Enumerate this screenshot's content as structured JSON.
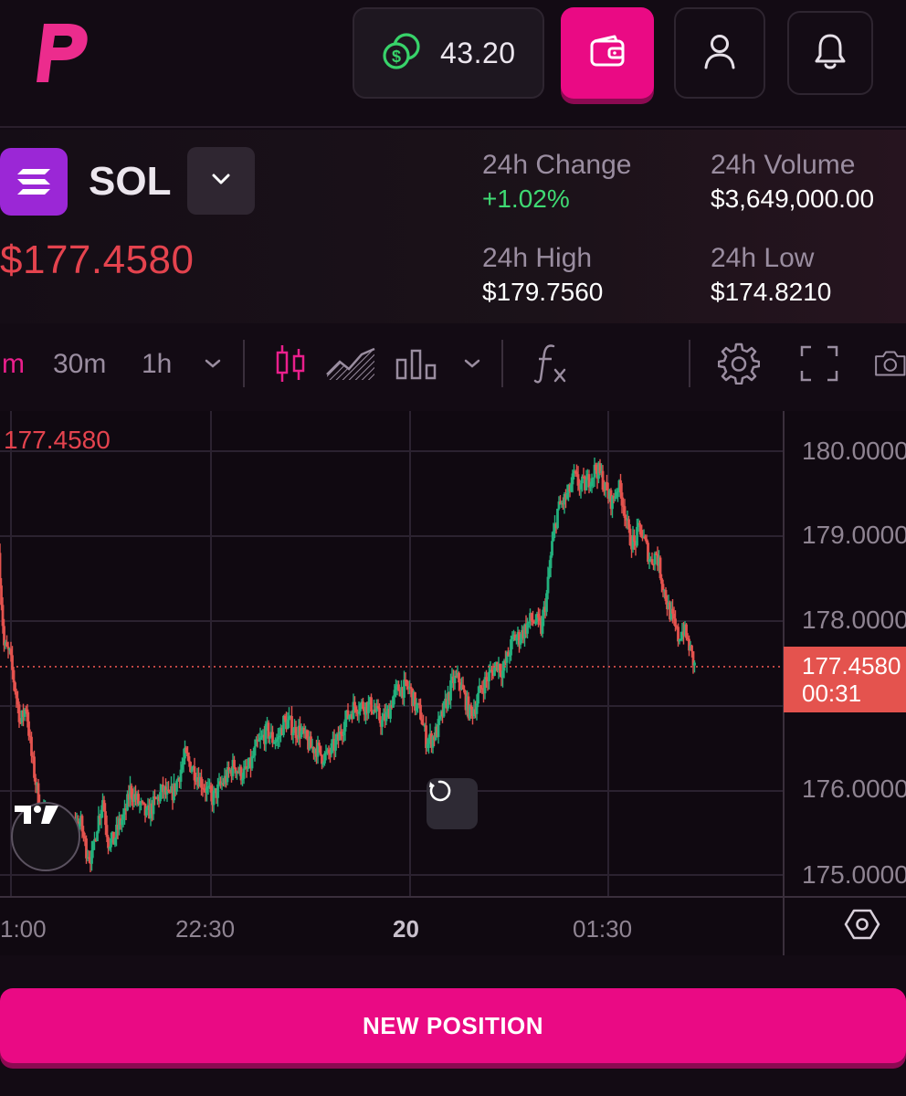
{
  "header": {
    "balance": "43.20",
    "wallet_icon": "wallet-icon",
    "profile_icon": "user-icon",
    "notifications_icon": "bell-icon"
  },
  "market": {
    "symbol": "SOL",
    "price": "$177.4580",
    "change_label": "24h Change",
    "change_value": "+1.02%",
    "volume_label": "24h Volume",
    "volume_value": "$3,649,000.00",
    "high_label": "24h High",
    "high_value": "$179.7560",
    "low_label": "24h Low",
    "low_value": "$174.8210"
  },
  "toolbar": {
    "intervals": [
      "m",
      "30m",
      "1h"
    ],
    "selected_interval": "m",
    "icons": [
      "candles-icon",
      "area-chart-icon",
      "bars-icon",
      "function-icon",
      "gear-icon",
      "fullscreen-icon",
      "camera-icon"
    ]
  },
  "chart_data": {
    "type": "candlestick",
    "y_ticks": [
      "180.0000",
      "179.0000",
      "178.0000",
      "176.0000",
      "175.0000"
    ],
    "x_ticks": [
      "1:00",
      "22:30",
      "20",
      "01:30"
    ],
    "last_price_label": "177.4580",
    "current_price": "177.4580",
    "countdown": "00:31",
    "ylim": [
      174.9,
      180.4
    ],
    "close_path": [
      [
        0,
        178.8
      ],
      [
        6,
        177.7
      ],
      [
        12,
        177.6
      ],
      [
        18,
        177.2
      ],
      [
        24,
        176.8
      ],
      [
        30,
        177.0
      ],
      [
        36,
        176.4
      ],
      [
        42,
        176.0
      ],
      [
        48,
        175.7
      ],
      [
        54,
        175.7
      ],
      [
        60,
        175.6
      ],
      [
        66,
        175.5
      ],
      [
        72,
        175.3
      ],
      [
        78,
        175.5
      ],
      [
        84,
        175.6
      ],
      [
        90,
        175.6
      ],
      [
        96,
        175.3
      ],
      [
        102,
        175.2
      ],
      [
        108,
        175.6
      ],
      [
        114,
        175.9
      ],
      [
        120,
        175.4
      ],
      [
        126,
        175.4
      ],
      [
        132,
        175.6
      ],
      [
        138,
        175.7
      ],
      [
        144,
        176.0
      ],
      [
        150,
        175.9
      ],
      [
        156,
        175.8
      ],
      [
        162,
        175.7
      ],
      [
        168,
        175.8
      ],
      [
        174,
        175.9
      ],
      [
        180,
        176.0
      ],
      [
        186,
        175.9
      ],
      [
        192,
        176.0
      ],
      [
        198,
        176.2
      ],
      [
        204,
        176.4
      ],
      [
        210,
        176.3
      ],
      [
        216,
        176.2
      ],
      [
        222,
        176.1
      ],
      [
        228,
        176.0
      ],
      [
        234,
        175.9
      ],
      [
        240,
        176.0
      ],
      [
        246,
        176.1
      ],
      [
        252,
        176.2
      ],
      [
        258,
        176.3
      ],
      [
        264,
        176.2
      ],
      [
        270,
        176.2
      ],
      [
        276,
        176.3
      ],
      [
        282,
        176.5
      ],
      [
        288,
        176.6
      ],
      [
        294,
        176.7
      ],
      [
        300,
        176.6
      ],
      [
        306,
        176.6
      ],
      [
        312,
        176.8
      ],
      [
        318,
        176.8
      ],
      [
        324,
        176.7
      ],
      [
        330,
        176.7
      ],
      [
        336,
        176.6
      ],
      [
        342,
        176.5
      ],
      [
        348,
        176.5
      ],
      [
        354,
        176.4
      ],
      [
        360,
        176.4
      ],
      [
        366,
        176.5
      ],
      [
        372,
        176.6
      ],
      [
        378,
        176.8
      ],
      [
        384,
        176.9
      ],
      [
        390,
        177.0
      ],
      [
        396,
        177.0
      ],
      [
        402,
        177.0
      ],
      [
        408,
        177.0
      ],
      [
        414,
        176.9
      ],
      [
        420,
        176.8
      ],
      [
        426,
        176.9
      ],
      [
        432,
        177.1
      ],
      [
        438,
        177.2
      ],
      [
        444,
        177.2
      ],
      [
        450,
        177.2
      ],
      [
        456,
        177.0
      ],
      [
        462,
        176.9
      ],
      [
        468,
        176.6
      ],
      [
        474,
        176.6
      ],
      [
        480,
        176.7
      ],
      [
        486,
        176.9
      ],
      [
        492,
        177.1
      ],
      [
        498,
        177.3
      ],
      [
        504,
        177.3
      ],
      [
        510,
        177.1
      ],
      [
        516,
        176.9
      ],
      [
        522,
        177.0
      ],
      [
        528,
        177.2
      ],
      [
        534,
        177.3
      ],
      [
        540,
        177.4
      ],
      [
        546,
        177.5
      ],
      [
        552,
        177.4
      ],
      [
        558,
        177.6
      ],
      [
        564,
        177.8
      ],
      [
        570,
        177.8
      ],
      [
        576,
        177.9
      ],
      [
        582,
        178.0
      ],
      [
        588,
        178.0
      ],
      [
        594,
        177.9
      ],
      [
        600,
        178.3
      ],
      [
        606,
        178.9
      ],
      [
        612,
        179.3
      ],
      [
        618,
        179.4
      ],
      [
        624,
        179.5
      ],
      [
        630,
        179.7
      ],
      [
        636,
        179.6
      ],
      [
        642,
        179.6
      ],
      [
        648,
        179.7
      ],
      [
        654,
        179.8
      ],
      [
        660,
        179.7
      ],
      [
        666,
        179.5
      ],
      [
        672,
        179.4
      ],
      [
        678,
        179.6
      ],
      [
        684,
        179.4
      ],
      [
        690,
        179.0
      ],
      [
        696,
        178.9
      ],
      [
        702,
        179.1
      ],
      [
        708,
        178.9
      ],
      [
        714,
        178.7
      ],
      [
        720,
        178.8
      ],
      [
        726,
        178.5
      ],
      [
        732,
        178.2
      ],
      [
        738,
        178.0
      ],
      [
        744,
        177.8
      ],
      [
        750,
        177.9
      ],
      [
        756,
        177.7
      ],
      [
        762,
        177.46
      ]
    ]
  },
  "bottom": {
    "new_position_label": "NEW POSITION"
  }
}
